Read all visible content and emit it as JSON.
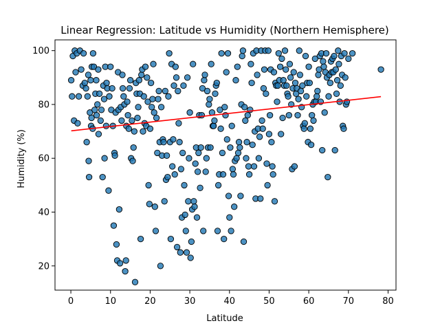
{
  "chart_data": {
    "type": "scatter",
    "title": "Linear Regression: Latitude vs Humidity (Northern Hemisphere)",
    "xlabel": "Latitude",
    "ylabel": "Humidity (%)",
    "xlim": [
      -4,
      82
    ],
    "ylim": [
      11,
      104
    ],
    "xticks": [
      0,
      10,
      20,
      30,
      40,
      50,
      60,
      70,
      80
    ],
    "yticks": [
      20,
      40,
      60,
      80,
      100
    ],
    "grid": false,
    "point_color": "#1f77b4",
    "point_edge_color": "#000000",
    "regression_color": "#ff0000",
    "regression_line": {
      "x": [
        0.1,
        78.2
      ],
      "y": [
        70.2,
        82.9
      ]
    },
    "points": [
      [
        0.1,
        89
      ],
      [
        0.3,
        83
      ],
      [
        0.5,
        98
      ],
      [
        0.8,
        74
      ],
      [
        1,
        100
      ],
      [
        1.2,
        92
      ],
      [
        1.5,
        99
      ],
      [
        1.7,
        73
      ],
      [
        2,
        83
      ],
      [
        2.3,
        100
      ],
      [
        2.6,
        93
      ],
      [
        3,
        87
      ],
      [
        3.2,
        99
      ],
      [
        3.5,
        88
      ],
      [
        3.8,
        86
      ],
      [
        4,
        66
      ],
      [
        4.2,
        83
      ],
      [
        4.4,
        91
      ],
      [
        4.5,
        59
      ],
      [
        4.6,
        53
      ],
      [
        4.8,
        77
      ],
      [
        5,
        89
      ],
      [
        5.1,
        72
      ],
      [
        5.2,
        75
      ],
      [
        5.3,
        94
      ],
      [
        5.5,
        71
      ],
      [
        5.6,
        99
      ],
      [
        5.8,
        94
      ],
      [
        6,
        78
      ],
      [
        6.2,
        84
      ],
      [
        6.4,
        89
      ],
      [
        6.5,
        76
      ],
      [
        6.7,
        80
      ],
      [
        6.9,
        93
      ],
      [
        7,
        69
      ],
      [
        7.2,
        84
      ],
      [
        7.5,
        74
      ],
      [
        7.7,
        78
      ],
      [
        8,
        53
      ],
      [
        8.2,
        87
      ],
      [
        8.4,
        82
      ],
      [
        8.5,
        60
      ],
      [
        8.7,
        94
      ],
      [
        8.9,
        72
      ],
      [
        9,
        88
      ],
      [
        9.2,
        86
      ],
      [
        9.5,
        48
      ],
      [
        9.7,
        83
      ],
      [
        10,
        94
      ],
      [
        10.2,
        78
      ],
      [
        10.4,
        86
      ],
      [
        10.6,
        72
      ],
      [
        10.8,
        35
      ],
      [
        11,
        62
      ],
      [
        11.1,
        61
      ],
      [
        11.3,
        77
      ],
      [
        11.5,
        28
      ],
      [
        11.7,
        22
      ],
      [
        11.9,
        92
      ],
      [
        12,
        78
      ],
      [
        12.2,
        41
      ],
      [
        12.4,
        21
      ],
      [
        12.6,
        79
      ],
      [
        12.8,
        74
      ],
      [
        13,
        91
      ],
      [
        13.1,
        86
      ],
      [
        13.3,
        83
      ],
      [
        13.5,
        80
      ],
      [
        13.7,
        18
      ],
      [
        13.9,
        22
      ],
      [
        14,
        72
      ],
      [
        14.2,
        81
      ],
      [
        14.4,
        76
      ],
      [
        14.6,
        71
      ],
      [
        14.8,
        86
      ],
      [
        15,
        89
      ],
      [
        15.2,
        60
      ],
      [
        15.4,
        74
      ],
      [
        15.6,
        59
      ],
      [
        15.8,
        64
      ],
      [
        16,
        70
      ],
      [
        16.2,
        14
      ],
      [
        16.4,
        88
      ],
      [
        16.6,
        84
      ],
      [
        16.8,
        75
      ],
      [
        17,
        79
      ],
      [
        17.2,
        89
      ],
      [
        17.4,
        84
      ],
      [
        17.6,
        30
      ],
      [
        17.8,
        91
      ],
      [
        18,
        93
      ],
      [
        18.2,
        70
      ],
      [
        18.4,
        83
      ],
      [
        18.6,
        73
      ],
      [
        18.8,
        94
      ],
      [
        19,
        72
      ],
      [
        19.2,
        90
      ],
      [
        19.4,
        81
      ],
      [
        19.6,
        50
      ],
      [
        19.8,
        43
      ],
      [
        20,
        71
      ],
      [
        20.2,
        88
      ],
      [
        20.4,
        79
      ],
      [
        20.6,
        82
      ],
      [
        20.8,
        95
      ],
      [
        21,
        77
      ],
      [
        21.2,
        42
      ],
      [
        21.4,
        33
      ],
      [
        21.6,
        75
      ],
      [
        21.8,
        62
      ],
      [
        22,
        82
      ],
      [
        22.2,
        85
      ],
      [
        22.4,
        66
      ],
      [
        22.6,
        20
      ],
      [
        22.8,
        79
      ],
      [
        23,
        61
      ],
      [
        23.2,
        67
      ],
      [
        23.4,
        66
      ],
      [
        23.6,
        44
      ],
      [
        23.8,
        85
      ],
      [
        24,
        52
      ],
      [
        24.2,
        61
      ],
      [
        24.4,
        53
      ],
      [
        24.6,
        83
      ],
      [
        24.8,
        99
      ],
      [
        25,
        66
      ],
      [
        25.2,
        30
      ],
      [
        25.4,
        95
      ],
      [
        25.6,
        57
      ],
      [
        25.8,
        67
      ],
      [
        26,
        87
      ],
      [
        26.2,
        54
      ],
      [
        26.4,
        94
      ],
      [
        26.6,
        90
      ],
      [
        26.8,
        27
      ],
      [
        27,
        85
      ],
      [
        27.2,
        73
      ],
      [
        27.4,
        66
      ],
      [
        27.6,
        25
      ],
      [
        27.8,
        56
      ],
      [
        28,
        38
      ],
      [
        28.2,
        62
      ],
      [
        28.4,
        87
      ],
      [
        28.6,
        50
      ],
      [
        28.8,
        39
      ],
      [
        29,
        33
      ],
      [
        29.2,
        25
      ],
      [
        29.4,
        90
      ],
      [
        29.6,
        44
      ],
      [
        29.8,
        60
      ],
      [
        30,
        77
      ],
      [
        30.2,
        23
      ],
      [
        30.4,
        29
      ],
      [
        30.6,
        41
      ],
      [
        30.8,
        95
      ],
      [
        31,
        44
      ],
      [
        31.2,
        42
      ],
      [
        31.4,
        58
      ],
      [
        31.6,
        64
      ],
      [
        31.8,
        38
      ],
      [
        32,
        55
      ],
      [
        32.2,
        62
      ],
      [
        32.4,
        76
      ],
      [
        32.6,
        49
      ],
      [
        32.8,
        64
      ],
      [
        33,
        76
      ],
      [
        33.2,
        86
      ],
      [
        33.4,
        33
      ],
      [
        33.6,
        89
      ],
      [
        33.8,
        91
      ],
      [
        34,
        55
      ],
      [
        34.2,
        60
      ],
      [
        34.4,
        85
      ],
      [
        34.6,
        64
      ],
      [
        34.8,
        80
      ],
      [
        35,
        82
      ],
      [
        35.2,
        64
      ],
      [
        35.4,
        95
      ],
      [
        35.6,
        77
      ],
      [
        35.8,
        72
      ],
      [
        36,
        72
      ],
      [
        36.2,
        74
      ],
      [
        36.4,
        84
      ],
      [
        36.6,
        87
      ],
      [
        36.8,
        88
      ],
      [
        37,
        33
      ],
      [
        37.2,
        50
      ],
      [
        37.4,
        54
      ],
      [
        37.6,
        78
      ],
      [
        37.8,
        71
      ],
      [
        38,
        99
      ],
      [
        38.2,
        62
      ],
      [
        38.4,
        54
      ],
      [
        38.6,
        30
      ],
      [
        38.8,
        79
      ],
      [
        39,
        76
      ],
      [
        39.2,
        92
      ],
      [
        39.4,
        67
      ],
      [
        39.6,
        99
      ],
      [
        39.8,
        46
      ],
      [
        40,
        38
      ],
      [
        40.2,
        64
      ],
      [
        40.4,
        33
      ],
      [
        40.6,
        72
      ],
      [
        40.8,
        56
      ],
      [
        41,
        54
      ],
      [
        41.2,
        42
      ],
      [
        41.4,
        59
      ],
      [
        41.6,
        89
      ],
      [
        41.8,
        60
      ],
      [
        42,
        94
      ],
      [
        42.2,
        62
      ],
      [
        42.4,
        66
      ],
      [
        42.6,
        64
      ],
      [
        42.8,
        46
      ],
      [
        43,
        80
      ],
      [
        43.2,
        98
      ],
      [
        43.4,
        100
      ],
      [
        43.6,
        29
      ],
      [
        43.8,
        79
      ],
      [
        44,
        74
      ],
      [
        44.2,
        60
      ],
      [
        44.4,
        66
      ],
      [
        44.6,
        76
      ],
      [
        44.8,
        57
      ],
      [
        45,
        54
      ],
      [
        45.2,
        78
      ],
      [
        45.4,
        95
      ],
      [
        45.6,
        88
      ],
      [
        45.8,
        65
      ],
      [
        46,
        99
      ],
      [
        46.2,
        57
      ],
      [
        46.4,
        70
      ],
      [
        46.6,
        45
      ],
      [
        46.8,
        100
      ],
      [
        47,
        91
      ],
      [
        47.2,
        71
      ],
      [
        47.4,
        60
      ],
      [
        47.6,
        68
      ],
      [
        47.8,
        45
      ],
      [
        48,
        100
      ],
      [
        48.2,
        74
      ],
      [
        48.4,
        71
      ],
      [
        48.6,
        86
      ],
      [
        48.8,
        93
      ],
      [
        49,
        100
      ],
      [
        49.2,
        84
      ],
      [
        49.4,
        58
      ],
      [
        49.6,
        50
      ],
      [
        49.8,
        100
      ],
      [
        50,
        69
      ],
      [
        50.2,
        76
      ],
      [
        50.4,
        93
      ],
      [
        50.6,
        66
      ],
      [
        50.8,
        57
      ],
      [
        51,
        54
      ],
      [
        51.2,
        92
      ],
      [
        51.4,
        44
      ],
      [
        51.6,
        88
      ],
      [
        51.8,
        87
      ],
      [
        52,
        81
      ],
      [
        52.2,
        87
      ],
      [
        52.4,
        99
      ],
      [
        52.6,
        89
      ],
      [
        52.8,
        94
      ],
      [
        53,
        69
      ],
      [
        53.2,
        97
      ],
      [
        53.4,
        75
      ],
      [
        53.6,
        89
      ],
      [
        53.8,
        87
      ],
      [
        54,
        100
      ],
      [
        54.2,
        93
      ],
      [
        54.4,
        87
      ],
      [
        54.6,
        84
      ],
      [
        54.8,
        83
      ],
      [
        55,
        76
      ],
      [
        55.2,
        95
      ],
      [
        55.4,
        90
      ],
      [
        55.6,
        80
      ],
      [
        55.8,
        56
      ],
      [
        56,
        86
      ],
      [
        56.2,
        92
      ],
      [
        56.4,
        57
      ],
      [
        56.6,
        88
      ],
      [
        56.8,
        84
      ],
      [
        57,
        86
      ],
      [
        57.2,
        76
      ],
      [
        57.4,
        82
      ],
      [
        57.6,
        100
      ],
      [
        57.8,
        91
      ],
      [
        58,
        85
      ],
      [
        58.2,
        79
      ],
      [
        58.4,
        87
      ],
      [
        58.6,
        72
      ],
      [
        58.8,
        71
      ],
      [
        59,
        73
      ],
      [
        59.2,
        98
      ],
      [
        59.4,
        83
      ],
      [
        59.6,
        88
      ],
      [
        59.8,
        66
      ],
      [
        60,
        94
      ],
      [
        60.2,
        88
      ],
      [
        60.4,
        71
      ],
      [
        60.6,
        65
      ],
      [
        60.8,
        76
      ],
      [
        61,
        80
      ],
      [
        61.2,
        74
      ],
      [
        61.4,
        81
      ],
      [
        61.6,
        97
      ],
      [
        61.8,
        81
      ],
      [
        62,
        83
      ],
      [
        62.2,
        85
      ],
      [
        62.4,
        91
      ],
      [
        62.6,
        93
      ],
      [
        62.8,
        98
      ],
      [
        63,
        81
      ],
      [
        63.2,
        99
      ],
      [
        63.4,
        63
      ],
      [
        63.6,
        96
      ],
      [
        63.8,
        94
      ],
      [
        64,
        77
      ],
      [
        64.2,
        92
      ],
      [
        64.4,
        99
      ],
      [
        64.6,
        90
      ],
      [
        64.8,
        53
      ],
      [
        65,
        83
      ],
      [
        65.2,
        91
      ],
      [
        65.4,
        88
      ],
      [
        65.6,
        96
      ],
      [
        65.8,
        92
      ],
      [
        66,
        97
      ],
      [
        66.2,
        92
      ],
      [
        66.4,
        98
      ],
      [
        66.6,
        63
      ],
      [
        66.8,
        93
      ],
      [
        67,
        84
      ],
      [
        67.2,
        89
      ],
      [
        67.4,
        100
      ],
      [
        67.6,
        95
      ],
      [
        67.8,
        81
      ],
      [
        68,
        87
      ],
      [
        68.2,
        98
      ],
      [
        68.4,
        91
      ],
      [
        68.6,
        72
      ],
      [
        68.8,
        71
      ],
      [
        69,
        99
      ],
      [
        69.2,
        90
      ],
      [
        69.4,
        80
      ],
      [
        69.6,
        81
      ],
      [
        70,
        97
      ],
      [
        71,
        99
      ],
      [
        78.2,
        93
      ]
    ]
  }
}
